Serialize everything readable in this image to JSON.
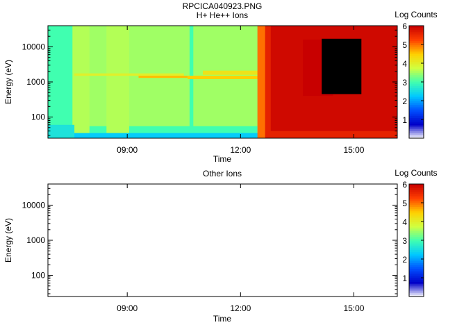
{
  "figure_title": "RPCICA040923.PNG",
  "chart_data": [
    {
      "type": "heatmap",
      "title": "H+ He++ Ions",
      "xlabel": "Time",
      "ylabel": "Energy (eV)",
      "x_ticks": [
        "09:00",
        "12:00",
        "15:00"
      ],
      "x_range_hours": [
        6.9,
        16.15
      ],
      "x_tick_hours": [
        9,
        12,
        15
      ],
      "y_scale": "log",
      "y_range": [
        25,
        40000
      ],
      "y_ticks": [
        100,
        1000,
        10000
      ],
      "y_tick_labels": [
        "100",
        "1000",
        "10000"
      ],
      "colorbar": {
        "label": "Log Counts",
        "range": [
          0,
          6
        ],
        "ticks": [
          1,
          2,
          3,
          4,
          5,
          6
        ],
        "tick_labels": [
          "1",
          "2",
          "3",
          "4",
          "5",
          "6"
        ],
        "colors": [
          "#ffffff",
          "#0000c8",
          "#0050ff",
          "#00c8ff",
          "#40ffb0",
          "#d0ff40",
          "#ffd000",
          "#ff4000",
          "#c80000",
          "#000000"
        ]
      },
      "regions": [
        {
          "t0": 6.9,
          "t1": 12.45,
          "e0": 25,
          "e1": 40000,
          "log_counts": 3.0
        },
        {
          "t0": 7.6,
          "t1": 12.45,
          "e0": 55,
          "e1": 40000,
          "log_counts": 3.5
        },
        {
          "t0": 7.55,
          "t1": 8.0,
          "e0": 30,
          "e1": 40000,
          "log_counts": 3.6
        },
        {
          "t0": 8.45,
          "t1": 9.05,
          "e0": 30,
          "e1": 40000,
          "log_counts": 3.6
        },
        {
          "t0": 10.65,
          "t1": 10.75,
          "e0": 30,
          "e1": 40000,
          "log_counts": 3.0
        },
        {
          "t0": 6.9,
          "t1": 12.45,
          "e0": 25,
          "e1": 35,
          "log_counts": 2.3
        },
        {
          "t0": 6.9,
          "t1": 7.6,
          "e0": 25,
          "e1": 60,
          "log_counts": 2.6
        },
        {
          "t0": 7.6,
          "t1": 10.5,
          "e0": 1500,
          "e1": 1750,
          "log_counts": 4.0
        },
        {
          "t0": 9.3,
          "t1": 10.6,
          "e0": 1300,
          "e1": 1500,
          "log_counts": 4.6
        },
        {
          "t0": 10.6,
          "t1": 12.45,
          "e0": 1200,
          "e1": 1500,
          "log_counts": 4.5
        },
        {
          "t0": 11.0,
          "t1": 12.45,
          "e0": 1600,
          "e1": 2100,
          "log_counts": 4.2
        },
        {
          "t0": 12.45,
          "t1": 16.15,
          "e0": 25,
          "e1": 40000,
          "log_counts": 5.6
        },
        {
          "t0": 12.45,
          "t1": 12.65,
          "e0": 25,
          "e1": 40000,
          "log_counts": 5.0
        },
        {
          "t0": 12.8,
          "t1": 16.15,
          "e0": 40,
          "e1": 40000,
          "log_counts": 5.9
        },
        {
          "t0": 13.65,
          "t1": 14.45,
          "e0": 400,
          "e1": 16000,
          "log_counts": 6.0
        },
        {
          "t0": 14.15,
          "t1": 15.2,
          "e0": 450,
          "e1": 17000,
          "log_counts": 7.0
        }
      ]
    },
    {
      "type": "heatmap",
      "title": "Other Ions",
      "xlabel": "Time",
      "ylabel": "Energy (eV)",
      "x_ticks": [
        "09:00",
        "12:00",
        "15:00"
      ],
      "x_range_hours": [
        6.9,
        16.15
      ],
      "x_tick_hours": [
        9,
        12,
        15
      ],
      "y_scale": "log",
      "y_range": [
        25,
        40000
      ],
      "y_ticks": [
        100,
        1000,
        10000
      ],
      "y_tick_labels": [
        "100",
        "1000",
        "10000"
      ],
      "colorbar": {
        "label": "Log Counts",
        "range": [
          0,
          6
        ],
        "ticks": [
          1,
          2,
          3,
          4,
          5,
          6
        ],
        "tick_labels": [
          "1",
          "2",
          "3",
          "4",
          "5",
          "6"
        ],
        "colors": [
          "#ffffff",
          "#0000c8",
          "#0050ff",
          "#00c8ff",
          "#40ffb0",
          "#d0ff40",
          "#ffd000",
          "#ff4000",
          "#c80000",
          "#000000"
        ]
      },
      "regions": []
    }
  ]
}
